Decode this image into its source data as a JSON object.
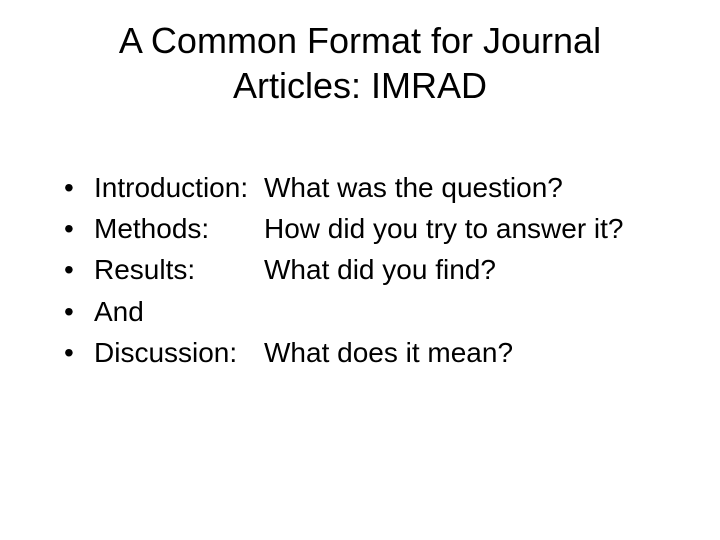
{
  "title": "A Common Format for Journal Articles: IMRAD",
  "bullets": [
    {
      "label": "Introduction:",
      "desc": "What was the question?"
    },
    {
      "label": "Methods:",
      "desc": "How did you try to answer it?"
    },
    {
      "label": "Results:",
      "desc": "What did you find?"
    },
    {
      "label": "And",
      "desc": ""
    },
    {
      "label": "Discussion:",
      "desc": "What does it mean?"
    }
  ],
  "colors": {
    "background": "#ffffff",
    "text": "#000000"
  },
  "typography": {
    "title_fontsize": 36,
    "body_fontsize": 28,
    "font_family": "Arial"
  }
}
